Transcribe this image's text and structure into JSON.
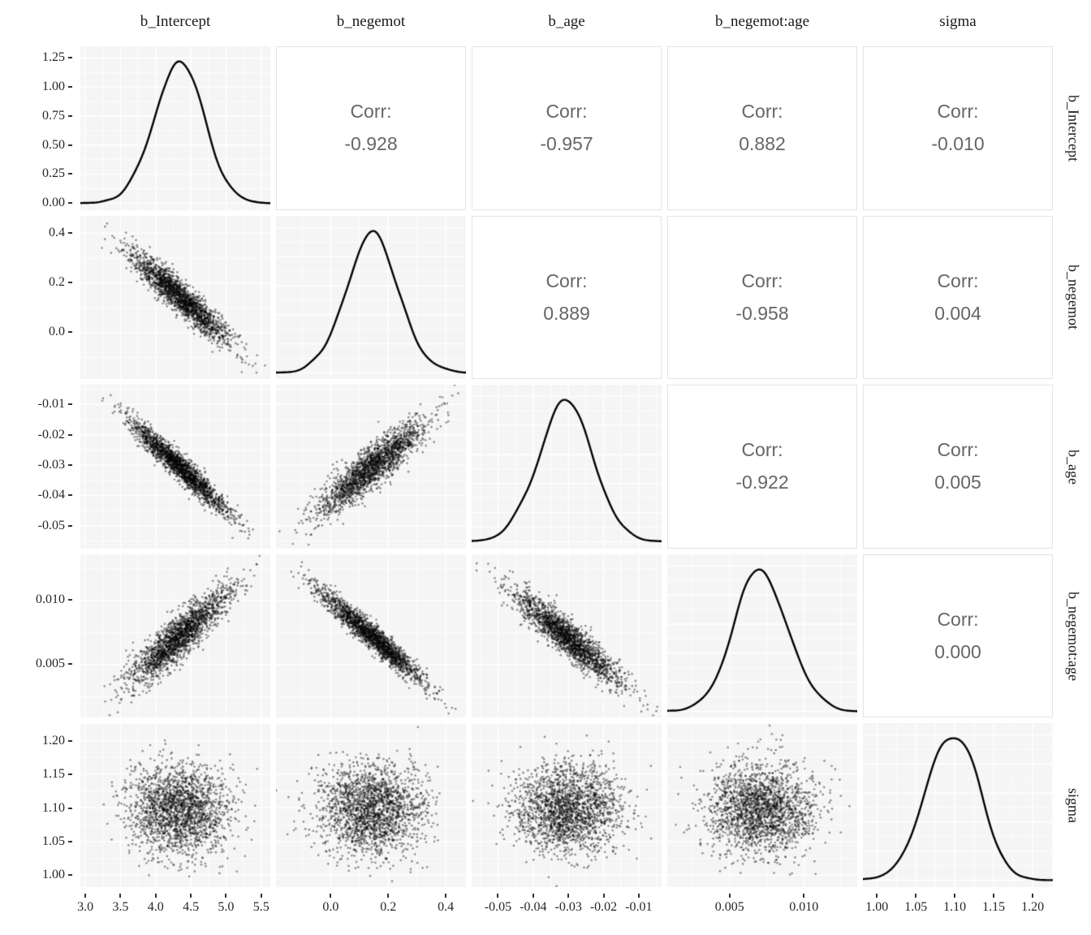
{
  "chart_data": {
    "type": "scatter",
    "subtype": "pairs-correlation-matrix",
    "title": "",
    "variables": [
      "b_Intercept",
      "b_negemot",
      "b_age",
      "b_negemot:age",
      "sigma"
    ],
    "corr_label": "Corr:",
    "corr_display": {
      "r0c1": "-0.928",
      "r0c2": "-0.957",
      "r0c3": "0.882",
      "r0c4": "-0.010",
      "r1c2": "0.889",
      "r1c3": "-0.958",
      "r1c4": "0.004",
      "r2c3": "-0.922",
      "r2c4": "0.005",
      "r3c4": "0.000"
    },
    "corr_matrix": [
      [
        1.0,
        -0.928,
        -0.957,
        0.882,
        -0.01
      ],
      [
        -0.928,
        1.0,
        0.889,
        -0.958,
        0.004
      ],
      [
        -0.957,
        0.889,
        1.0,
        -0.922,
        0.005
      ],
      [
        0.882,
        -0.958,
        -0.922,
        1.0,
        0.0
      ],
      [
        -0.01,
        0.004,
        0.005,
        0.0,
        1.0
      ]
    ],
    "axes": [
      {
        "variable": "b_Intercept",
        "min": 2.93,
        "max": 5.63,
        "mean": 4.34,
        "sd": 0.345,
        "tick_values": [
          3.0,
          3.5,
          4.0,
          4.5,
          5.0,
          5.5
        ],
        "tick_labels": [
          "3.0",
          "3.5",
          "4.0",
          "4.5",
          "5.0",
          "5.5"
        ]
      },
      {
        "variable": "b_negemot",
        "min": -0.19,
        "max": 0.47,
        "mean": 0.145,
        "sd": 0.09,
        "tick_values": [
          0.0,
          0.2,
          0.4
        ],
        "tick_labels": [
          "0.0",
          "0.2",
          "0.4"
        ]
      },
      {
        "variable": "b_age",
        "min": -0.0575,
        "max": -0.0035,
        "mean": -0.0305,
        "sd": 0.0076,
        "tick_values": [
          -0.05,
          -0.04,
          -0.03,
          -0.02,
          -0.01
        ],
        "tick_labels": [
          "-0.05",
          "-0.04",
          "-0.03",
          "-0.02",
          "-0.01"
        ]
      },
      {
        "variable": "b_negemot:age",
        "min": 0.0008,
        "max": 0.0136,
        "mean": 0.00715,
        "sd": 0.0018,
        "tick_values": [
          0.005,
          0.01
        ],
        "tick_labels": [
          "0.005",
          "0.010"
        ]
      },
      {
        "variable": "sigma",
        "min": 0.982,
        "max": 1.226,
        "mean": 1.097,
        "sd": 0.0325,
        "tick_values": [
          1.0,
          1.05,
          1.1,
          1.15,
          1.2
        ],
        "tick_labels": [
          "1.00",
          "1.05",
          "1.10",
          "1.15",
          "1.20"
        ]
      }
    ],
    "density_axis": {
      "min": -0.06,
      "max": 1.35,
      "peak": 1.22,
      "tick_values": [
        0.0,
        0.25,
        0.5,
        0.75,
        1.0,
        1.25
      ],
      "tick_labels": [
        "0.00",
        "0.25",
        "0.50",
        "0.75",
        "1.00",
        "1.25"
      ]
    },
    "layout": {
      "grid": "5x5 pairs matrix",
      "diagonal": "density curves",
      "lower_triangle": "scatter plots",
      "upper_triangle": "correlation values",
      "legend": "none",
      "gridlines": "white on light gray panels"
    },
    "style": {
      "panel_bg": "#F5F5F5",
      "grid_color": "#FFFFFF",
      "point_color": "rgba(0,0,0,0.42)",
      "line_color": "#000000",
      "corr_text_color": "#666666",
      "corr_panel_border": "#E4E4E4",
      "axis_text_color": "#262626",
      "n_points": 2000
    }
  }
}
